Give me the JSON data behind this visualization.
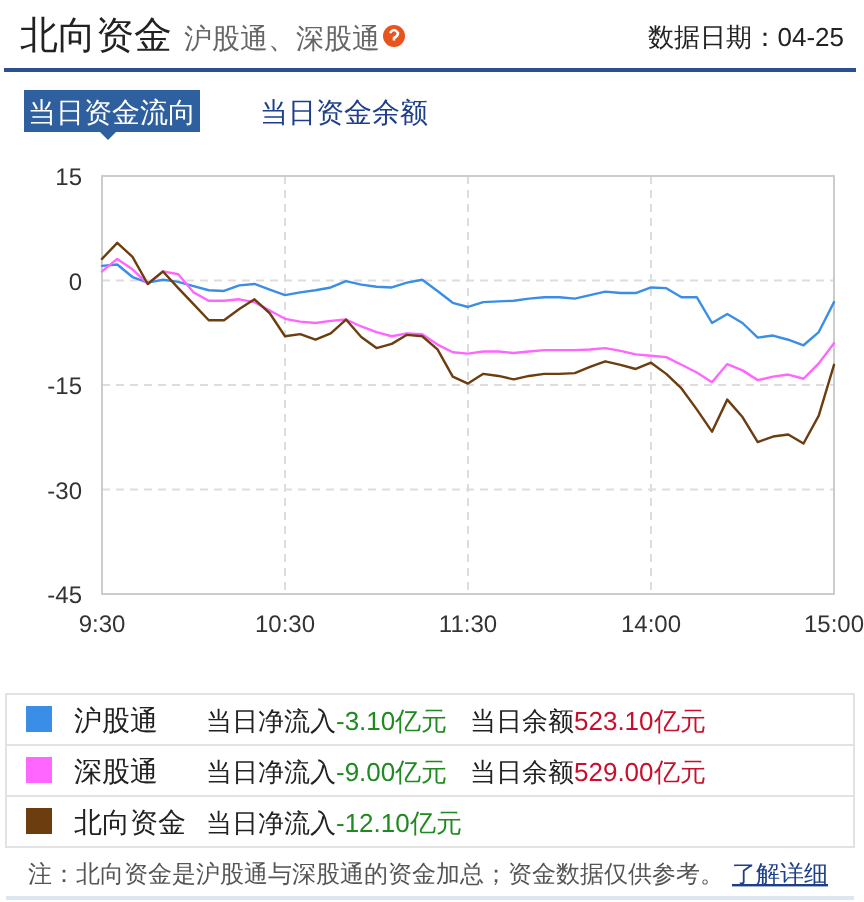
{
  "chart_data": {
    "type": "line",
    "title": "北向资金",
    "subtitle": "沪股通、深股通",
    "annotations": [
      "数据日期：04-25",
      "当日资金流向",
      "当日资金余额",
      "当日净流入",
      "-3.10亿元",
      "当日余额",
      "523.10亿元",
      "当日净流入",
      "-9.00亿元",
      "当日余额",
      "529.00亿元",
      "当日净流入",
      "-12.10亿元",
      "注：北向资金是沪股通与深股通的资金加总；资金数据仅供参考。",
      "了解详细"
    ],
    "categories": [
      "9:30",
      null,
      null,
      null,
      null,
      null,
      null,
      null,
      null,
      null,
      null,
      null,
      "10:30",
      null,
      null,
      null,
      null,
      null,
      null,
      null,
      null,
      null,
      null,
      null,
      "11:30",
      null,
      null,
      null,
      null,
      null,
      null,
      null,
      null,
      null,
      null,
      null,
      "14:00",
      null,
      null,
      null,
      null,
      null,
      null,
      null,
      null,
      null,
      null,
      null,
      "15:00"
    ],
    "ylim": [
      -45,
      15
    ],
    "yticks": [
      15,
      0,
      -15,
      -30,
      -45
    ],
    "grid": true,
    "legend": "bottom",
    "series": [
      {
        "name": "沪股通",
        "color": "#3a8ee6",
        "values": [
          2.1,
          2.3,
          0.5,
          -0.3,
          0.1,
          -0.2,
          -0.8,
          -1.4,
          -1.5,
          -0.7,
          -0.5,
          -1.3,
          -2.1,
          -1.7,
          -1.4,
          -1.0,
          -0.1,
          -0.6,
          -0.9,
          -1,
          -0.3,
          0.1,
          -1.5,
          -3.2,
          -3.8,
          -3.1,
          -3.0,
          -2.9,
          -2.6,
          -2.4,
          -2.4,
          -2.6,
          -2.1,
          -1.6,
          -1.8,
          -1.8,
          -1,
          -1.1,
          -2.4,
          -2.4,
          -6.1,
          -4.8,
          -6.1,
          -8.2,
          -7.9,
          -8.5,
          -9.3,
          -7.4,
          -3.1
        ]
      },
      {
        "name": "深股通",
        "color": "#ff66ff",
        "values": [
          1.3,
          3.1,
          1.6,
          -0.5,
          1.3,
          0.9,
          -1.7,
          -2.9,
          -2.9,
          -2.7,
          -3.1,
          -4.3,
          -5.5,
          -5.9,
          -6.1,
          -5.8,
          -5.6,
          -6.6,
          -7.4,
          -8,
          -7.6,
          -7.7,
          -9.2,
          -10.3,
          -10.5,
          -10.2,
          -10.2,
          -10.4,
          -10.2,
          -10,
          -10,
          -10,
          -9.9,
          -9.7,
          -10.1,
          -10.6,
          -10.8,
          -11,
          -12.1,
          -13.2,
          -14.6,
          -12,
          -12.9,
          -14.3,
          -13.8,
          -13.5,
          -14.1,
          -11.9,
          -9
        ]
      },
      {
        "name": "北向资金",
        "color": "#6b3d0f",
        "values": [
          3.1,
          5.4,
          3.4,
          -0.5,
          1.3,
          -1.1,
          -3.4,
          -5.7,
          -5.7,
          -4.1,
          -2.7,
          -4.7,
          -8.0,
          -7.7,
          -8.5,
          -7.6,
          -5.6,
          -8.1,
          -9.7,
          -9.1,
          -7.8,
          -8,
          -9.9,
          -13.8,
          -14.8,
          -13.4,
          -13.7,
          -14.2,
          -13.7,
          -13.4,
          -13.4,
          -13.3,
          -12.4,
          -11.6,
          -12.1,
          -12.7,
          -11.8,
          -13.4,
          -15.5,
          -18.5,
          -21.7,
          -17.1,
          -19.6,
          -23.2,
          -22.4,
          -22.1,
          -23.4,
          -19.4,
          -12.1
        ]
      }
    ]
  }
}
